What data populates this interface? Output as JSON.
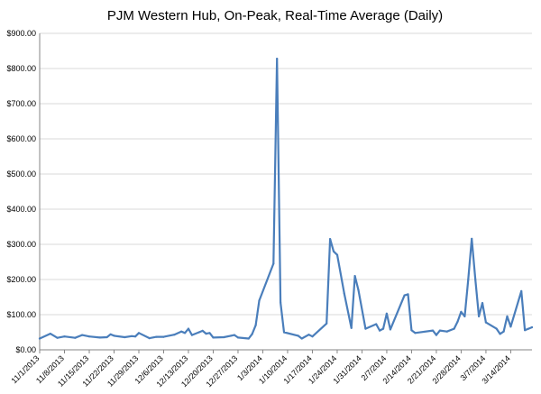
{
  "chart_data": {
    "type": "line",
    "title": "PJM Western Hub, On-Peak, Real-Time Average (Daily)",
    "xlabel": "",
    "ylabel": "",
    "ylim": [
      0,
      900
    ],
    "y_ticks": [
      "$0.00",
      "$100.00",
      "$200.00",
      "$300.00",
      "$400.00",
      "$500.00",
      "$600.00",
      "$700.00",
      "$800.00",
      "$900.00"
    ],
    "x_ticks": [
      "11/1/2013",
      "11/8/2013",
      "11/15/2013",
      "11/22/2013",
      "11/29/2013",
      "12/6/2013",
      "12/13/2013",
      "12/20/2013",
      "12/27/2013",
      "1/3/2014",
      "1/10/2014",
      "1/17/2014",
      "1/24/2014",
      "1/31/2014",
      "2/7/2014",
      "2/14/2014",
      "2/21/2014",
      "2/28/2014",
      "3/7/2014",
      "3/14/2014"
    ],
    "x_range": [
      "11/1/2013",
      "3/20/2014"
    ],
    "grid": true,
    "legend": "none",
    "color": "#4a7ebb",
    "series": [
      {
        "points": [
          [
            "11/1/2013",
            32
          ],
          [
            "11/4/2013",
            46
          ],
          [
            "11/6/2013",
            34
          ],
          [
            "11/8/2013",
            38
          ],
          [
            "11/11/2013",
            34
          ],
          [
            "11/13/2013",
            42
          ],
          [
            "11/15/2013",
            38
          ],
          [
            "11/18/2013",
            35
          ],
          [
            "11/20/2013",
            36
          ],
          [
            "11/21/2013",
            44
          ],
          [
            "11/22/2013",
            40
          ],
          [
            "11/25/2013",
            36
          ],
          [
            "11/27/2013",
            39
          ],
          [
            "11/28/2013",
            38
          ],
          [
            "11/29/2013",
            48
          ],
          [
            "12/2/2013",
            33
          ],
          [
            "12/4/2013",
            37
          ],
          [
            "12/6/2013",
            37
          ],
          [
            "12/9/2013",
            43
          ],
          [
            "12/11/2013",
            52
          ],
          [
            "12/12/2013",
            48
          ],
          [
            "12/13/2013",
            60
          ],
          [
            "12/14/2013",
            42
          ],
          [
            "12/16/2013",
            50
          ],
          [
            "12/17/2013",
            54
          ],
          [
            "12/18/2013",
            46
          ],
          [
            "12/19/2013",
            48
          ],
          [
            "12/20/2013",
            35
          ],
          [
            "12/23/2013",
            36
          ],
          [
            "12/25/2013",
            40
          ],
          [
            "12/26/2013",
            42
          ],
          [
            "12/27/2013",
            35
          ],
          [
            "12/30/2013",
            32
          ],
          [
            "12/31/2013",
            45
          ],
          [
            "1/1/2014",
            70
          ],
          [
            "1/2/2014",
            140
          ],
          [
            "1/6/2014",
            245
          ],
          [
            "1/7/2014",
            828
          ],
          [
            "1/8/2014",
            135
          ],
          [
            "1/9/2014",
            50
          ],
          [
            "1/13/2014",
            40
          ],
          [
            "1/14/2014",
            32
          ],
          [
            "1/16/2014",
            43
          ],
          [
            "1/17/2014",
            38
          ],
          [
            "1/21/2014",
            75
          ],
          [
            "1/22/2014",
            315
          ],
          [
            "1/23/2014",
            280
          ],
          [
            "1/24/2014",
            270
          ],
          [
            "1/26/2014",
            160
          ],
          [
            "1/28/2014",
            62
          ],
          [
            "1/29/2014",
            210
          ],
          [
            "1/30/2014",
            170
          ],
          [
            "2/1/2014",
            60
          ],
          [
            "2/4/2014",
            73
          ],
          [
            "2/5/2014",
            55
          ],
          [
            "2/6/2014",
            60
          ],
          [
            "2/7/2014",
            103
          ],
          [
            "2/8/2014",
            58
          ],
          [
            "2/12/2014",
            155
          ],
          [
            "2/13/2014",
            158
          ],
          [
            "2/14/2014",
            56
          ],
          [
            "2/15/2014",
            48
          ],
          [
            "2/20/2014",
            55
          ],
          [
            "2/21/2014",
            42
          ],
          [
            "2/22/2014",
            55
          ],
          [
            "2/24/2014",
            52
          ],
          [
            "2/26/2014",
            60
          ],
          [
            "2/27/2014",
            80
          ],
          [
            "2/28/2014",
            108
          ],
          [
            "3/1/2014",
            95
          ],
          [
            "3/2/2014",
            200
          ],
          [
            "3/3/2014",
            316
          ],
          [
            "3/4/2014",
            200
          ],
          [
            "3/5/2014",
            95
          ],
          [
            "3/6/2014",
            133
          ],
          [
            "3/7/2014",
            78
          ],
          [
            "3/10/2014",
            60
          ],
          [
            "3/11/2014",
            45
          ],
          [
            "3/12/2014",
            52
          ],
          [
            "3/13/2014",
            95
          ],
          [
            "3/14/2014",
            66
          ],
          [
            "3/17/2014",
            167
          ],
          [
            "3/18/2014",
            56
          ],
          [
            "3/19/2014",
            60
          ],
          [
            "3/20/2014",
            64
          ]
        ]
      }
    ]
  }
}
